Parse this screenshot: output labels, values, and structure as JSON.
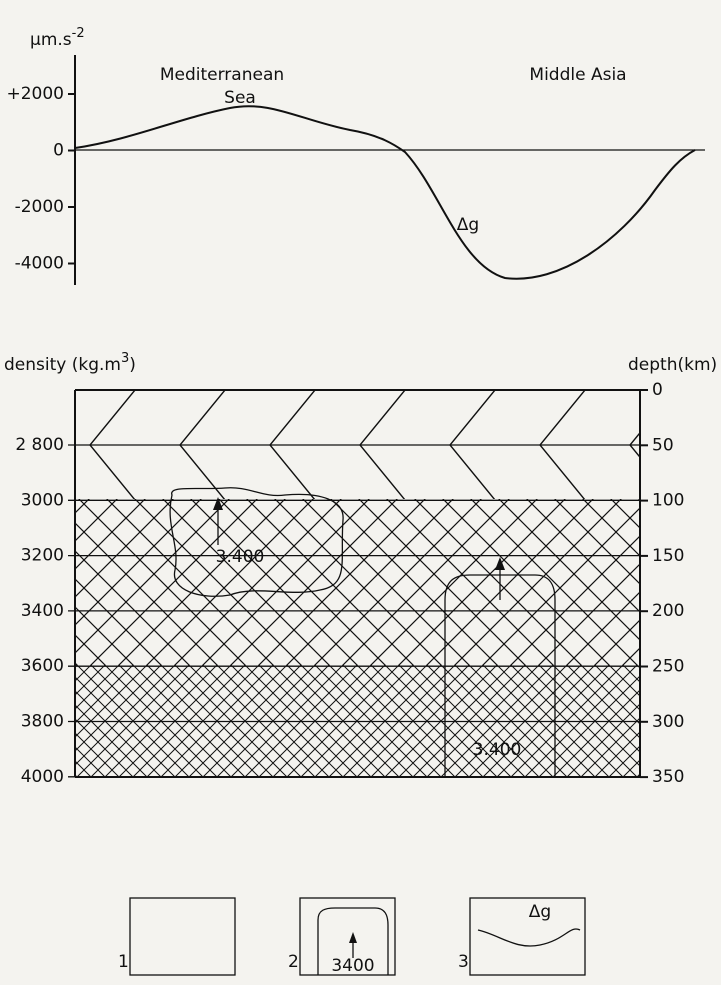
{
  "gravity_panel": {
    "unit": "μm.s",
    "unit_exponent": "-2",
    "yticks": [
      "+2000",
      "0",
      "-2000",
      "-4000"
    ],
    "left_region": [
      "Mediterranean",
      "Sea"
    ],
    "right_region": "Middle Asia",
    "curve_label": "Δg"
  },
  "section_panel": {
    "density_title": [
      "density (kg.m",
      "3",
      ")"
    ],
    "depth_title": "depth(km)",
    "density_ticks": [
      "2 800",
      "3000",
      "3200",
      "3400",
      "3600",
      "3800",
      "4000"
    ],
    "depth_ticks": [
      "0",
      "50",
      "100",
      "150",
      "200",
      "250",
      "300",
      "350"
    ],
    "body_labels": [
      "3.400",
      "3.400"
    ]
  },
  "legend": [
    {
      "number": "1"
    },
    {
      "number": "2",
      "label": "3400"
    },
    {
      "number": "3",
      "label": "Δg"
    }
  ]
}
